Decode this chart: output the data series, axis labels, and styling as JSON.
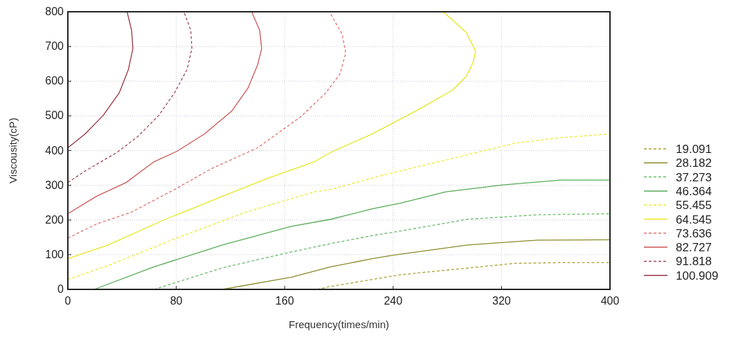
{
  "chart_data": {
    "type": "line",
    "xlabel": "Frequency(times/min)",
    "ylabel": "Viscousity(cP)",
    "xlim": [
      0,
      400
    ],
    "ylim": [
      0,
      800
    ],
    "xticks": [
      0,
      80,
      160,
      240,
      320,
      400
    ],
    "yticks": [
      0,
      100,
      200,
      300,
      400,
      500,
      600,
      700,
      800
    ],
    "grid": true,
    "legend": "right",
    "series": [
      {
        "name": "19.091",
        "color": "#a8a030",
        "line_style": "dashed",
        "x": [
          184,
          194,
          224.6,
          245,
          287,
          329.6,
          363,
          400
        ],
        "values": [
          0,
          8.6,
          28.6,
          42,
          58.5,
          75,
          77,
          77
        ]
      },
      {
        "name": "28.182",
        "color": "#8a8a2a",
        "line_style": "solid",
        "x": [
          114,
          165,
          194,
          224.6,
          240,
          295,
          346.5,
          400
        ],
        "values": [
          0,
          35,
          65,
          88.5,
          98.5,
          128,
          142,
          143
        ]
      },
      {
        "name": "37.273",
        "color": "#66bb66",
        "line_style": "dashed",
        "x": [
          63.6,
          114,
          165,
          194,
          224.6,
          245,
          295,
          346.5,
          400
        ],
        "values": [
          0,
          62,
          108,
          132,
          155,
          168,
          202,
          215,
          218
        ]
      },
      {
        "name": "46.364",
        "color": "#55aa55",
        "line_style": "solid",
        "x": [
          19.5,
          63.6,
          114,
          165,
          194,
          224.6,
          245,
          278.8,
          321,
          363.5,
          400
        ],
        "values": [
          0,
          65,
          128,
          182,
          202,
          232,
          248,
          281,
          301,
          315,
          315
        ]
      },
      {
        "name": "55.455",
        "color": "#f0e830",
        "line_style": "dashed",
        "x": [
          0,
          29.7,
          80.5,
          131,
          182,
          194,
          224.6,
          245,
          295,
          329.6,
          363,
          400
        ],
        "values": [
          28.6,
          68.6,
          148,
          222,
          281,
          288,
          321,
          341,
          388,
          421,
          437,
          448
        ]
      },
      {
        "name": "64.545",
        "color": "#e6e620",
        "line_style": "solid",
        "x": [
          0,
          29.7,
          72,
          114,
          148,
          182,
          194,
          224.6,
          256.7,
          283.9,
          294,
          299,
          300.8,
          294,
          277
        ],
        "values": [
          88.5,
          128,
          202,
          268,
          321,
          368,
          395,
          448,
          514,
          574,
          614,
          654,
          687,
          740,
          800
        ]
      },
      {
        "name": "73.636",
        "color": "#e07070",
        "line_style": "dashed",
        "x": [
          0,
          21,
          46.6,
          78.8,
          106,
          140,
          172,
          190.7,
          200.8,
          205,
          202.5,
          193
        ],
        "values": [
          148,
          188,
          222,
          288,
          348,
          408,
          498,
          568,
          621,
          681,
          734,
          800
        ]
      },
      {
        "name": "82.727",
        "color": "#cc5555",
        "line_style": "solid",
        "x": [
          0,
          21,
          43,
          63.6,
          80.5,
          100.8,
          121,
          133,
          140,
          143,
          141.5,
          135.6
        ],
        "values": [
          218,
          268,
          308,
          368,
          398,
          448,
          514,
          581,
          647,
          694,
          747,
          800
        ]
      },
      {
        "name": "91.818",
        "color": "#a04858",
        "line_style": "dashed",
        "x": [
          0,
          12.7,
          36.4,
          51.7,
          67,
          78.8,
          88,
          91.5,
          90.7,
          85.6
        ],
        "values": [
          308,
          341,
          395,
          441,
          501,
          567,
          634,
          694,
          747,
          800
        ]
      },
      {
        "name": "100.909",
        "color": "#993344",
        "line_style": "solid",
        "x": [
          0,
          12.7,
          26,
          38,
          44.7,
          48,
          47,
          43.7
        ],
        "values": [
          408,
          448,
          501,
          567,
          634,
          694,
          747,
          800
        ]
      }
    ]
  }
}
